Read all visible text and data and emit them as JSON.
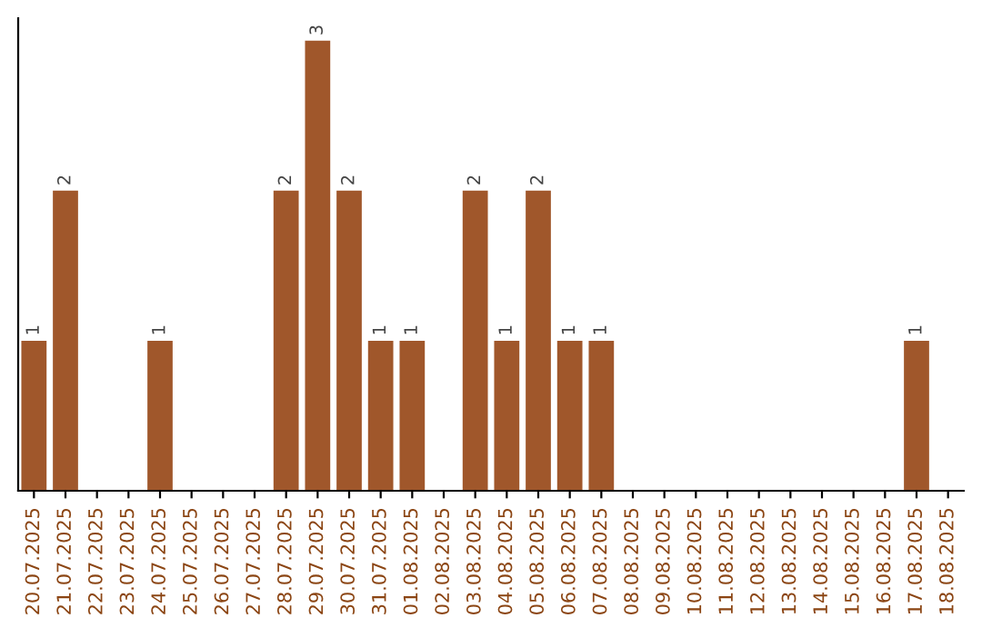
{
  "chart_data": {
    "type": "bar",
    "categories": [
      "20.07.2025",
      "21.07.2025",
      "22.07.2025",
      "23.07.2025",
      "24.07.2025",
      "25.07.2025",
      "26.07.2025",
      "27.07.2025",
      "28.07.2025",
      "29.07.2025",
      "30.07.2025",
      "31.07.2025",
      "01.08.2025",
      "02.08.2025",
      "03.08.2025",
      "04.08.2025",
      "05.08.2025",
      "06.08.2025",
      "07.08.2025",
      "08.08.2025",
      "09.08.2025",
      "10.08.2025",
      "11.08.2025",
      "12.08.2025",
      "13.08.2025",
      "14.08.2025",
      "15.08.2025",
      "16.08.2025",
      "17.08.2025",
      "18.08.2025"
    ],
    "values": [
      1,
      2,
      0,
      0,
      1,
      0,
      0,
      0,
      2,
      3,
      2,
      1,
      1,
      0,
      2,
      1,
      2,
      1,
      1,
      0,
      0,
      0,
      0,
      0,
      0,
      0,
      0,
      0,
      1,
      0
    ],
    "value_labels": [
      "1",
      "2",
      null,
      null,
      "1",
      null,
      null,
      null,
      "2",
      "3",
      "2",
      "1",
      "1",
      null,
      "2",
      "1",
      "2",
      "1",
      "1",
      null,
      null,
      null,
      null,
      null,
      null,
      null,
      null,
      null,
      "1",
      null
    ],
    "color": "#a0572b",
    "tick_labels": "x",
    "grid": false,
    "legend": false
  }
}
